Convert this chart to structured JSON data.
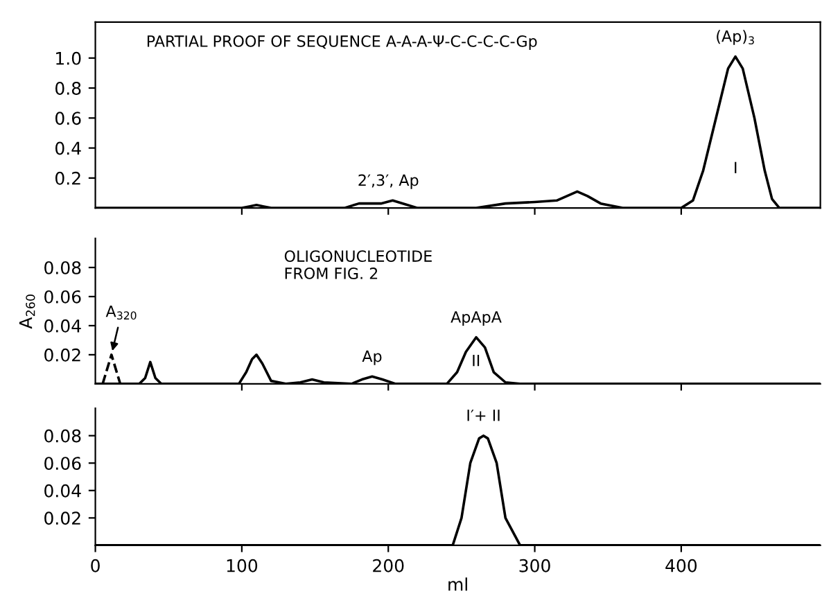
{
  "chart_data": [
    {
      "type": "line",
      "title": "PARTIAL PROOF OF SEQUENCE A-A-A-Ψ-C-C-C-C-Gp",
      "xlim": [
        0,
        495
      ],
      "ylim": [
        0,
        1.24
      ],
      "xticks": [
        {
          "value": 100,
          "label": null
        },
        {
          "value": 200,
          "label": null
        },
        {
          "value": 300,
          "label": null
        },
        {
          "value": 400,
          "label": null
        }
      ],
      "yticks": [
        0.2,
        0.4,
        0.6,
        0.8,
        {
          "value": 1.0,
          "label": "1.0"
        }
      ],
      "tick_labels": "y",
      "legend": false,
      "grid": false,
      "series": [
        {
          "color": "#000000",
          "line_style": "solid",
          "x": [
            0,
            100,
            105,
            110,
            115,
            120,
            170,
            180,
            190,
            195,
            203,
            210,
            220,
            260,
            280,
            300,
            315,
            322,
            329,
            336,
            345,
            360,
            400,
            408,
            415,
            425,
            432,
            437,
            442,
            450,
            457,
            462,
            467,
            495
          ],
          "values": [
            0,
            0,
            0.01,
            0.02,
            0.01,
            0,
            0,
            0.03,
            0.03,
            0.03,
            0.05,
            0.03,
            0,
            0,
            0.03,
            0.04,
            0.05,
            0.08,
            0.11,
            0.08,
            0.03,
            0,
            0,
            0.05,
            0.25,
            0.65,
            0.93,
            1.01,
            0.93,
            0.6,
            0.25,
            0.06,
            0,
            0
          ]
        }
      ],
      "annotations": [
        {
          "text": "(Ap)$_{3}$",
          "x": 437,
          "y": 1.01
        },
        "I",
        {
          "text": "2′,3′, Ap",
          "x": 200,
          "y": 0.05
        }
      ]
    },
    {
      "type": "line",
      "title": "OLIGONUCLEOTIDE\nFROM FIG. 2",
      "ylabel": "A$_{260}$",
      "xlim": [
        0,
        495
      ],
      "ylim": [
        0,
        0.1
      ],
      "xticks": [
        {
          "value": 100,
          "label": null
        },
        {
          "value": 200,
          "label": null
        },
        {
          "value": 300,
          "label": null
        },
        {
          "value": 400,
          "label": null
        }
      ],
      "yticks": [
        0.02,
        0.04,
        0.06,
        0.08
      ],
      "tick_labels": "y",
      "legend": false,
      "grid": false,
      "series": [
        {
          "color": "#000000",
          "line_style": "solid",
          "x": [
            0,
            30,
            34,
            37.5,
            41,
            45,
            98,
            103,
            107,
            110,
            114,
            120,
            130,
            140,
            148,
            156,
            175,
            182,
            189,
            196,
            205,
            240,
            247,
            253,
            260,
            266,
            272,
            280,
            290,
            495
          ],
          "values": [
            0,
            0,
            0.004,
            0.015,
            0.004,
            0,
            0,
            0.008,
            0.017,
            0.02,
            0.014,
            0.002,
            0,
            0.001,
            0.003,
            0.001,
            0,
            0.003,
            0.005,
            0.003,
            0,
            0,
            0.008,
            0.022,
            0.032,
            0.025,
            0.008,
            0.001,
            0,
            0
          ]
        },
        {
          "color": "#000000",
          "line_style": "dashed",
          "x": [
            5,
            8,
            11,
            14,
            17
          ],
          "values": [
            0,
            0.01,
            0.02,
            0.01,
            0
          ]
        }
      ],
      "annotations": [
        {
          "text": "A$_{320}$",
          "x": 11,
          "y": 0.02
        },
        {
          "text": "Ap",
          "x": 189,
          "y": 0.005
        },
        {
          "text": "ApApA",
          "x": 260,
          "y": 0.032
        },
        "II"
      ]
    },
    {
      "type": "line",
      "xlabel": "ml",
      "xlim": [
        0,
        495
      ],
      "ylim": [
        0,
        0.1
      ],
      "xticks": [
        0,
        100,
        200,
        300,
        400
      ],
      "yticks": [
        0.02,
        0.04,
        0.06,
        0.08
      ],
      "legend": false,
      "grid": false,
      "series": [
        {
          "color": "#000000",
          "line_style": "solid",
          "x": [
            0,
            244,
            250,
            256,
            262,
            265,
            268,
            274,
            280,
            290,
            495
          ],
          "values": [
            0,
            0,
            0.02,
            0.06,
            0.078,
            0.08,
            0.078,
            0.06,
            0.02,
            0,
            0
          ]
        }
      ],
      "annotations": [
        {
          "text": "I′+ II",
          "x": 265,
          "y": 0.08
        }
      ]
    }
  ]
}
